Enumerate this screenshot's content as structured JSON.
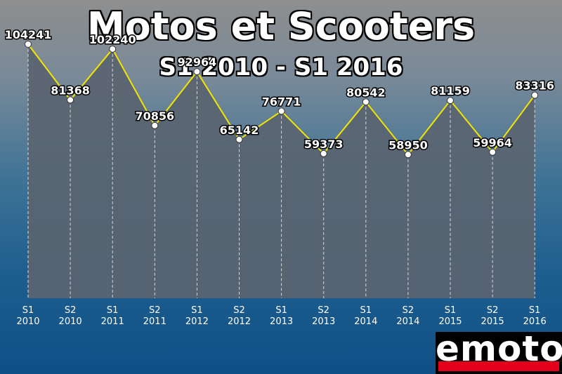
{
  "chart_data": {
    "type": "line",
    "title": "Motos et Scooters",
    "subtitle": "S1 2010 - S1 2016",
    "categories": [
      [
        "S1",
        "2010"
      ],
      [
        "S2",
        "2010"
      ],
      [
        "S1",
        "2011"
      ],
      [
        "S2",
        "2011"
      ],
      [
        "S1",
        "2012"
      ],
      [
        "S2",
        "2012"
      ],
      [
        "S1",
        "2013"
      ],
      [
        "S2",
        "2013"
      ],
      [
        "S1",
        "2014"
      ],
      [
        "S2",
        "2014"
      ],
      [
        "S1",
        "2015"
      ],
      [
        "S2",
        "2015"
      ],
      [
        "S1",
        "2016"
      ]
    ],
    "values": [
      104241,
      81368,
      102240,
      70856,
      92964,
      65142,
      76771,
      59373,
      80542,
      58950,
      81159,
      59964,
      83316
    ],
    "ylim": [
      0,
      110000
    ],
    "grid": false,
    "colors": {
      "line": "#f2e600",
      "area": "#5a6470",
      "marker": "#ffffff"
    }
  },
  "logo": {
    "text": "emoto"
  }
}
